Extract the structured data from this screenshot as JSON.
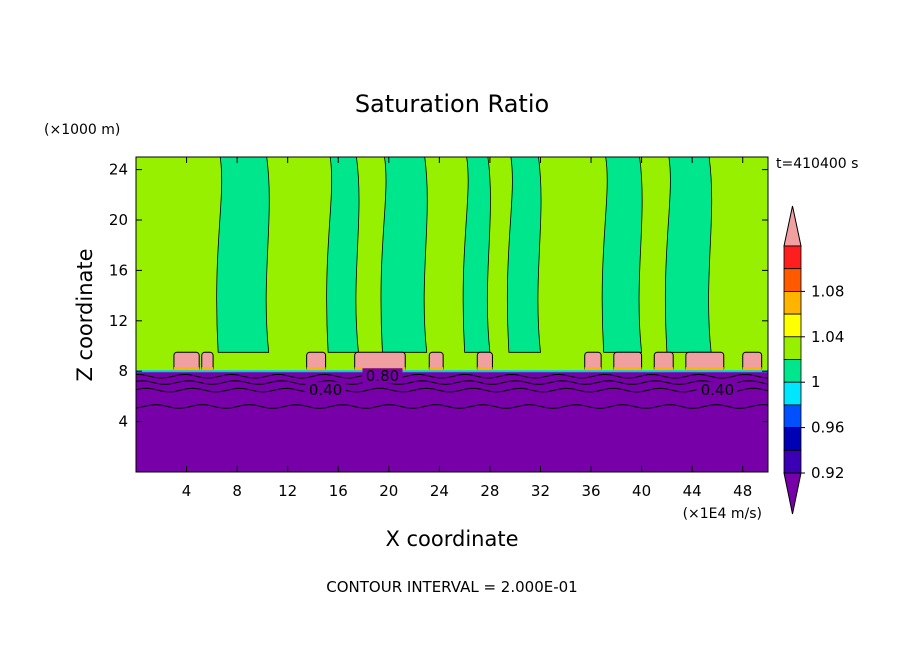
{
  "chart_data": {
    "type": "heatmap",
    "title": "Saturation Ratio",
    "xlabel": "X coordinate",
    "ylabel": "Z coordinate",
    "x_units": "(×1E4 m/s)",
    "y_units": "(×1000 m)",
    "time_label": "t=410400 s",
    "footer": "CONTOUR INTERVAL = 2.000E-01",
    "xlim": [
      0,
      50
    ],
    "ylim": [
      0,
      25
    ],
    "x_ticks": [
      4,
      8,
      12,
      16,
      20,
      24,
      28,
      32,
      36,
      40,
      44,
      48
    ],
    "y_ticks": [
      4,
      8,
      12,
      16,
      20,
      24
    ],
    "colorbar": {
      "levels": [
        0.92,
        0.96,
        1,
        1.04,
        1.08
      ],
      "colors": [
        "#7800a8",
        "#3c00b4",
        "#0000b4",
        "#0050ff",
        "#00e6ff",
        "#00e68c",
        "#96f000",
        "#ffff00",
        "#ffb400",
        "#ff5a00",
        "#ff1e1e",
        "#f0a0a0"
      ]
    },
    "contour_labels": [
      "0.80",
      "0.40",
      "0.40"
    ],
    "regions": {
      "dry_layer_top": 8,
      "moist_layer_top": 24.5,
      "cloud_band": [
        8,
        9.5
      ]
    }
  }
}
